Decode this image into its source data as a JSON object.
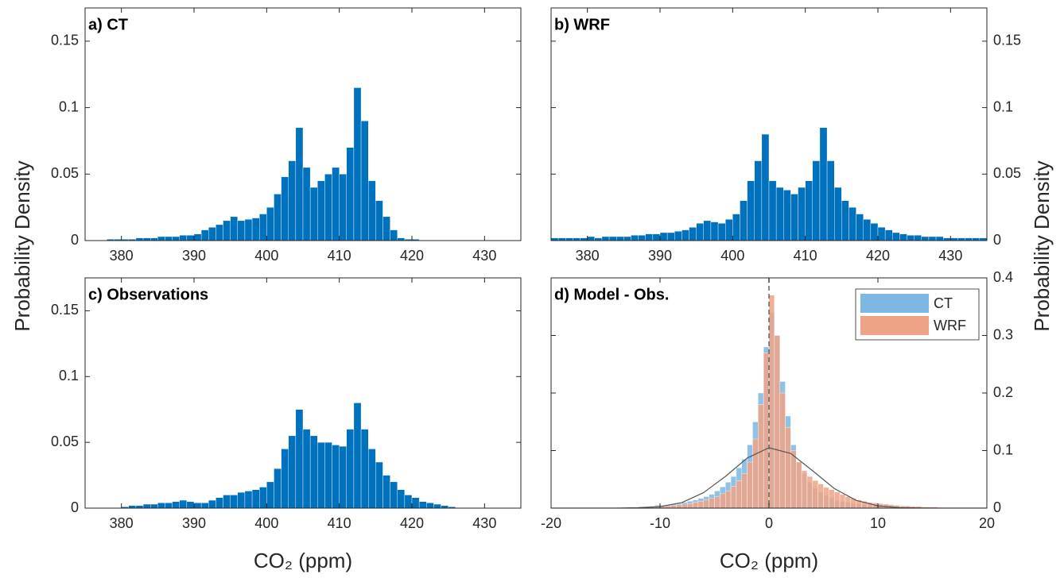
{
  "chart_data": [
    {
      "type": "histogram",
      "label": "a) CT",
      "ylabel": "Probability Density",
      "color": "#0072bd",
      "bins": [
        378,
        379,
        380,
        381,
        382,
        383,
        384,
        385,
        386,
        387,
        388,
        389,
        390,
        391,
        392,
        393,
        394,
        395,
        396,
        397,
        398,
        399,
        400,
        401,
        402,
        403,
        404,
        405,
        406,
        407,
        408,
        409,
        410,
        411,
        412,
        413,
        414,
        415,
        416,
        417,
        418,
        419,
        420,
        421
      ],
      "values": [
        0.001,
        0.001,
        0.001,
        0.001,
        0.002,
        0.002,
        0.002,
        0.003,
        0.003,
        0.003,
        0.004,
        0.004,
        0.005,
        0.008,
        0.01,
        0.012,
        0.015,
        0.018,
        0.015,
        0.016,
        0.017,
        0.02,
        0.025,
        0.035,
        0.048,
        0.06,
        0.085,
        0.055,
        0.04,
        0.045,
        0.05,
        0.055,
        0.05,
        0.07,
        0.115,
        0.09,
        0.045,
        0.03,
        0.018,
        0.008,
        0.002,
        0.001,
        0.001
      ],
      "xlim": [
        375,
        435
      ],
      "xticks": [
        380,
        390,
        400,
        410,
        420,
        430
      ],
      "ylim": [
        0,
        0.175
      ],
      "yticks": [
        0,
        0.05,
        0.1,
        0.15
      ]
    },
    {
      "type": "histogram",
      "label": "b) WRF",
      "ylabel": "Probability Density",
      "color": "#0072bd",
      "bins": [
        375,
        376,
        377,
        378,
        379,
        380,
        381,
        382,
        383,
        384,
        385,
        386,
        387,
        388,
        389,
        390,
        391,
        392,
        393,
        394,
        395,
        396,
        397,
        398,
        399,
        400,
        401,
        402,
        403,
        404,
        405,
        406,
        407,
        408,
        409,
        410,
        411,
        412,
        413,
        414,
        415,
        416,
        417,
        418,
        419,
        420,
        421,
        422,
        423,
        424,
        425,
        426,
        427,
        428,
        429,
        430,
        431,
        432,
        433,
        434,
        435
      ],
      "values": [
        0.002,
        0.002,
        0.002,
        0.002,
        0.002,
        0.003,
        0.002,
        0.003,
        0.003,
        0.003,
        0.003,
        0.004,
        0.004,
        0.005,
        0.005,
        0.006,
        0.006,
        0.007,
        0.008,
        0.01,
        0.013,
        0.015,
        0.014,
        0.013,
        0.016,
        0.02,
        0.03,
        0.045,
        0.06,
        0.08,
        0.045,
        0.04,
        0.038,
        0.035,
        0.04,
        0.045,
        0.06,
        0.085,
        0.06,
        0.04,
        0.03,
        0.025,
        0.02,
        0.016,
        0.013,
        0.01,
        0.008,
        0.006,
        0.005,
        0.004,
        0.004,
        0.003,
        0.003,
        0.003,
        0.002,
        0.002,
        0.002,
        0.002,
        0.002,
        0.002
      ],
      "xlim": [
        375,
        435
      ],
      "xticks": [
        380,
        390,
        400,
        410,
        420,
        430
      ],
      "ylim": [
        0,
        0.175
      ],
      "yticks": [
        0,
        0.05,
        0.1,
        0.15
      ]
    },
    {
      "type": "histogram",
      "label": "c) Observations",
      "xlabel": "CO₂ (ppm)",
      "color": "#0072bd",
      "bins": [
        380,
        381,
        382,
        383,
        384,
        385,
        386,
        387,
        388,
        389,
        390,
        391,
        392,
        393,
        394,
        395,
        396,
        397,
        398,
        399,
        400,
        401,
        402,
        403,
        404,
        405,
        406,
        407,
        408,
        409,
        410,
        411,
        412,
        413,
        414,
        415,
        416,
        417,
        418,
        419,
        420,
        421,
        422,
        423,
        424,
        425,
        426
      ],
      "values": [
        0.001,
        0.002,
        0.002,
        0.003,
        0.003,
        0.004,
        0.004,
        0.005,
        0.006,
        0.005,
        0.004,
        0.004,
        0.006,
        0.008,
        0.01,
        0.01,
        0.012,
        0.013,
        0.014,
        0.016,
        0.02,
        0.03,
        0.045,
        0.055,
        0.075,
        0.06,
        0.055,
        0.05,
        0.05,
        0.048,
        0.047,
        0.06,
        0.08,
        0.06,
        0.045,
        0.035,
        0.025,
        0.02,
        0.014,
        0.01,
        0.008,
        0.005,
        0.004,
        0.003,
        0.002,
        0.001
      ],
      "xlim": [
        375,
        435
      ],
      "xticks": [
        380,
        390,
        400,
        410,
        420,
        430
      ],
      "ylim": [
        0,
        0.175
      ],
      "yticks": [
        0,
        0.05,
        0.1,
        0.15
      ]
    },
    {
      "type": "histogram",
      "label": "d) Model - Obs.",
      "xlabel": "CO₂ (ppm)",
      "legend": "top-right",
      "bins": [
        -16,
        -15.5,
        -15,
        -14.5,
        -14,
        -13.5,
        -13,
        -12.5,
        -12,
        -11.5,
        -11,
        -10.5,
        -10,
        -9.5,
        -9,
        -8.5,
        -8,
        -7.5,
        -7,
        -6.5,
        -6,
        -5.5,
        -5,
        -4.5,
        -4,
        -3.5,
        -3,
        -2.5,
        -2,
        -1.5,
        -1,
        -0.5,
        0,
        0.5,
        1,
        1.5,
        2,
        2.5,
        3,
        3.5,
        4,
        4.5,
        5,
        5.5,
        6,
        6.5,
        7,
        7.5,
        8,
        8.5,
        9,
        9.5,
        10,
        10.5,
        11,
        11.5,
        12,
        12.5,
        13,
        13.5,
        14,
        14.5,
        15,
        15.5,
        16
      ],
      "series": [
        {
          "name": "CT",
          "color": "#7db7e2",
          "values": [
            0.001,
            0.001,
            0.001,
            0.001,
            0.001,
            0.002,
            0.002,
            0.002,
            0.003,
            0.003,
            0.004,
            0.005,
            0.005,
            0.006,
            0.007,
            0.008,
            0.01,
            0.012,
            0.014,
            0.017,
            0.02,
            0.024,
            0.03,
            0.037,
            0.045,
            0.055,
            0.07,
            0.085,
            0.11,
            0.15,
            0.2,
            0.28,
            0.34,
            0.3,
            0.22,
            0.16,
            0.11,
            0.08,
            0.06,
            0.045,
            0.035,
            0.028,
            0.022,
            0.018,
            0.014,
            0.012,
            0.01,
            0.008,
            0.007,
            0.006,
            0.005,
            0.004,
            0.004,
            0.003,
            0.003,
            0.002,
            0.002,
            0.002,
            0.001,
            0.001,
            0.001,
            0.001,
            0.001,
            0.001
          ]
        },
        {
          "name": "WRF",
          "color": "#eea386",
          "values": [
            0.001,
            0.001,
            0.001,
            0.001,
            0.001,
            0.001,
            0.002,
            0.002,
            0.002,
            0.002,
            0.003,
            0.003,
            0.004,
            0.004,
            0.005,
            0.006,
            0.007,
            0.008,
            0.01,
            0.012,
            0.014,
            0.017,
            0.02,
            0.025,
            0.03,
            0.038,
            0.048,
            0.06,
            0.08,
            0.12,
            0.18,
            0.27,
            0.37,
            0.3,
            0.2,
            0.14,
            0.1,
            0.08,
            0.065,
            0.055,
            0.048,
            0.042,
            0.036,
            0.032,
            0.028,
            0.024,
            0.02,
            0.017,
            0.014,
            0.012,
            0.01,
            0.009,
            0.008,
            0.007,
            0.006,
            0.005,
            0.004,
            0.004,
            0.003,
            0.003,
            0.002,
            0.002,
            0.002,
            0.001
          ]
        }
      ],
      "curve": {
        "color": "#555555",
        "x": [
          -20,
          -18,
          -16,
          -14,
          -12,
          -10,
          -8,
          -6,
          -4,
          -2,
          0,
          2,
          4,
          6,
          8,
          10,
          12,
          14,
          16,
          18,
          20
        ],
        "values": [
          0,
          0,
          0,
          0.0001,
          0.0006,
          0.0027,
          0.0096,
          0.027,
          0.055,
          0.087,
          0.105,
          0.095,
          0.065,
          0.034,
          0.0135,
          0.004,
          0.0009,
          0.0002,
          0,
          0,
          0
        ]
      },
      "vline": 0,
      "xlim": [
        -20,
        20
      ],
      "xticks": [
        -20,
        -10,
        0,
        10,
        20
      ],
      "ylim": [
        0,
        0.4
      ],
      "yticks": [
        0,
        0.1,
        0.2,
        0.3,
        0.4
      ]
    }
  ]
}
